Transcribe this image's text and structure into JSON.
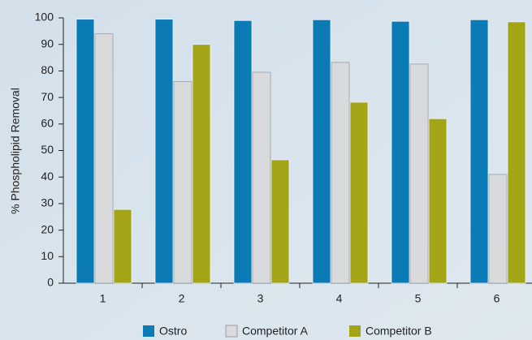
{
  "chart_data": {
    "type": "bar",
    "ylabel": "% Phospholipid Removal",
    "categories": [
      "1",
      "2",
      "3",
      "4",
      "5",
      "6"
    ],
    "series": [
      {
        "name": "Ostro",
        "color": "#0a7bb4",
        "values": [
          99.5,
          99.5,
          99,
          99.3,
          98.7,
          99.3
        ]
      },
      {
        "name": "Competitor A",
        "color": "#d9dadb",
        "values": [
          94,
          76,
          79.5,
          83.2,
          82.6,
          41
        ]
      },
      {
        "name": "Competitor B",
        "color": "#a3a516",
        "values": [
          27.8,
          90,
          46.5,
          68.2,
          62,
          98.5
        ]
      }
    ],
    "ylim": [
      0,
      100
    ],
    "yticks": [
      0,
      10,
      20,
      30,
      40,
      50,
      60,
      70,
      80,
      90,
      100
    ],
    "legend": "bottom"
  }
}
